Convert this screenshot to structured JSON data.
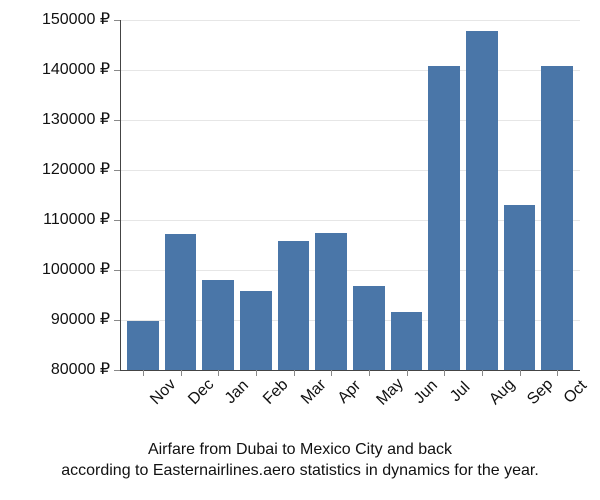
{
  "chart": {
    "type": "bar",
    "categories": [
      "Nov",
      "Dec",
      "Jan",
      "Feb",
      "Mar",
      "Apr",
      "May",
      "Jun",
      "Jul",
      "Aug",
      "Sep",
      "Oct"
    ],
    "values": [
      89800,
      107200,
      98100,
      95800,
      105800,
      107500,
      96900,
      91700,
      140800,
      147800,
      113100,
      140800
    ],
    "bar_color": "#4a76a8",
    "background_color": "#ffffff",
    "grid_color": "#e6e6e6",
    "axis_color": "#444444",
    "text_color": "#111111",
    "ylim": [
      80000,
      150000
    ],
    "yticks": [
      80000,
      90000,
      100000,
      110000,
      120000,
      130000,
      140000,
      150000
    ],
    "ytick_labels": [
      "80000 ₽",
      "90000 ₽",
      "100000 ₽",
      "110000 ₽",
      "120000 ₽",
      "130000 ₽",
      "140000 ₽",
      "150000 ₽"
    ],
    "label_fontsize": 16,
    "caption_fontsize": 16,
    "bar_width": 0.84,
    "x_label_rotation": -45
  },
  "caption": {
    "line1": "Airfare from Dubai to Mexico City and back",
    "line2": "according to Easternairlines.aero statistics in dynamics for the year."
  }
}
